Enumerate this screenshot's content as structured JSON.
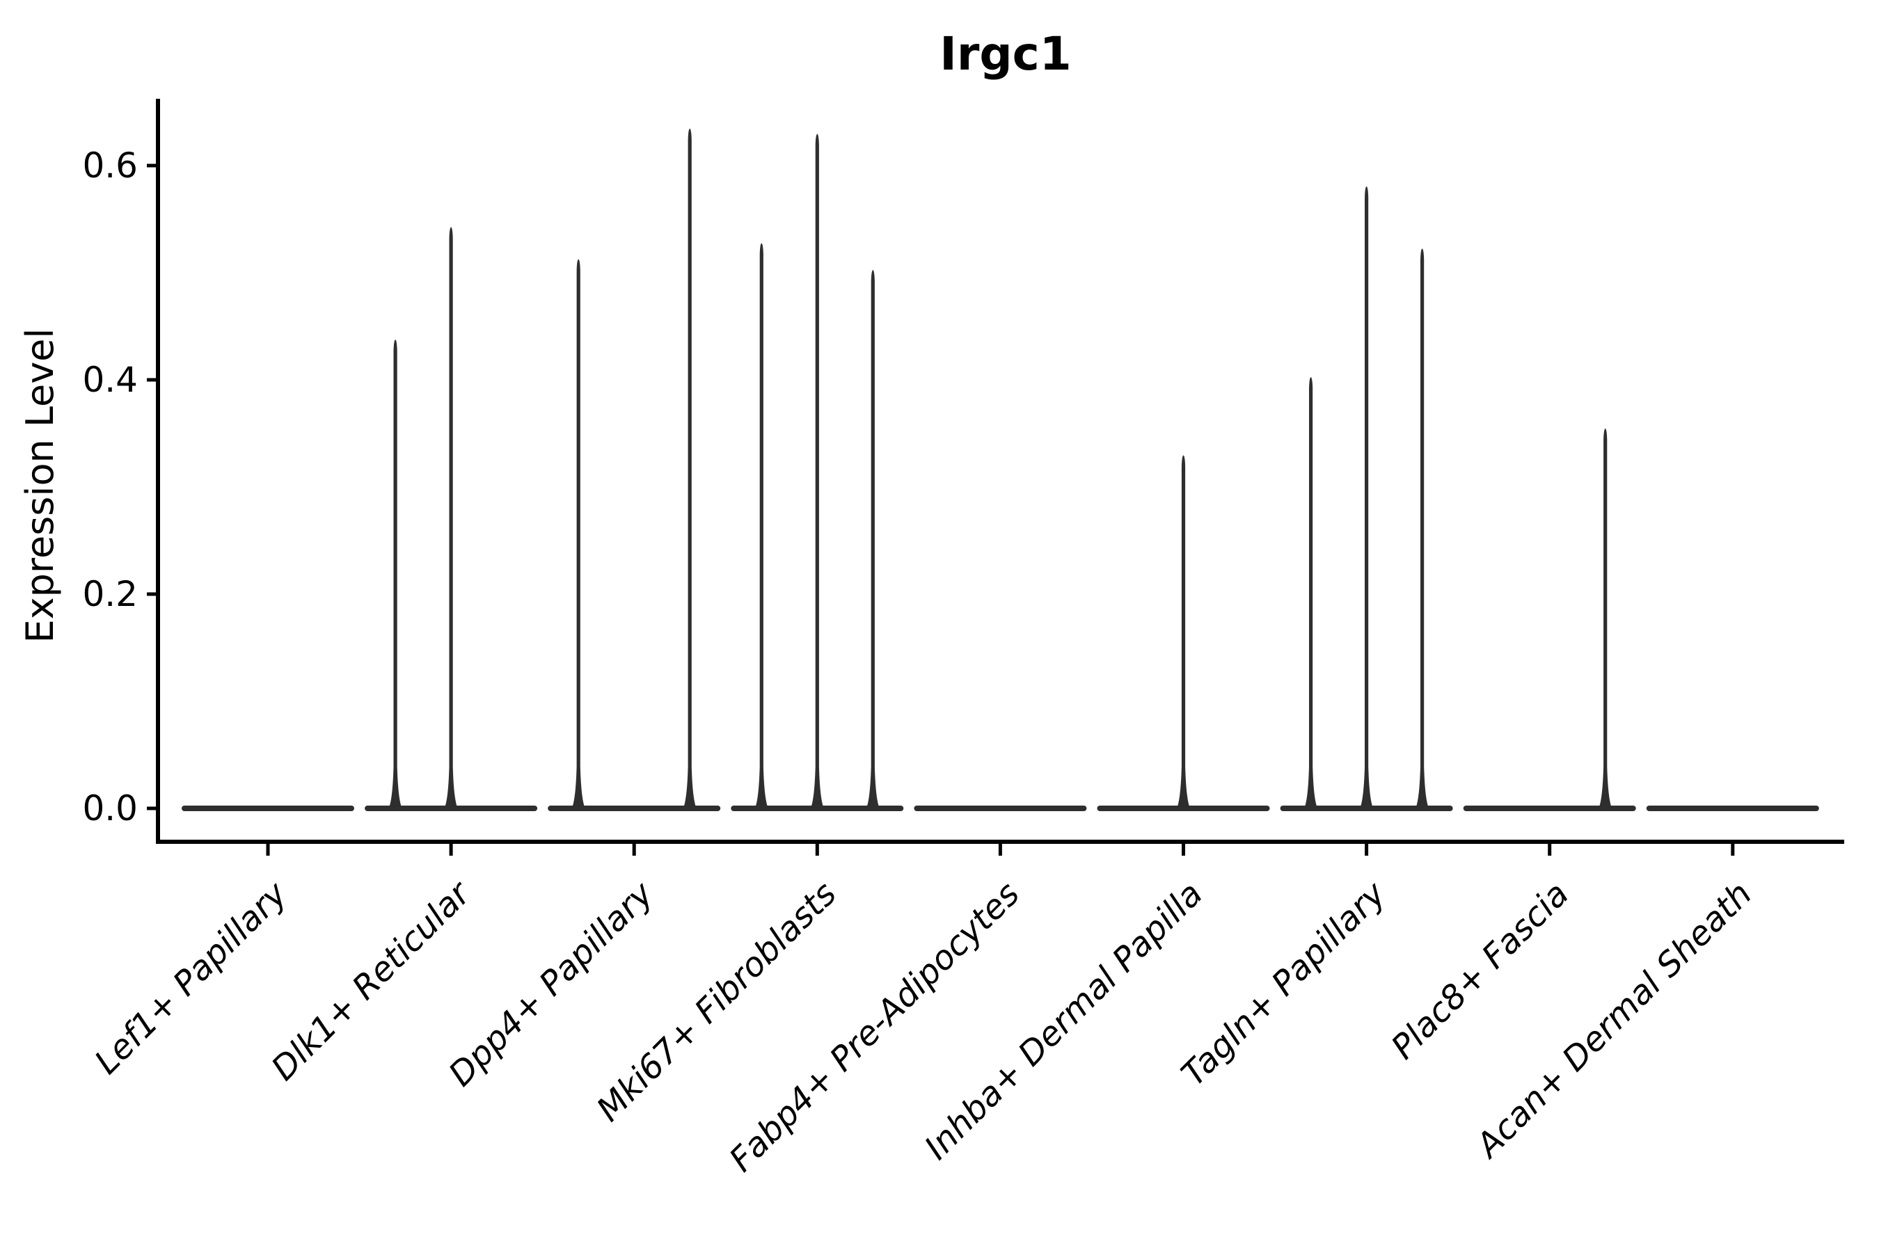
{
  "figure": {
    "title": "Irgc1",
    "y_axis": {
      "label": "Expression Level",
      "tick_labels": [
        "0.0",
        "0.2",
        "0.4",
        "0.6"
      ],
      "tick_values": [
        0.0,
        0.2,
        0.4,
        0.6
      ]
    },
    "x_axis": {
      "categories": [
        "Lef1+ Papillary",
        "Dlk1+ Reticular",
        "Dpp4+ Papillary",
        "Mki67+ Fibroblasts",
        "Fabp4+ Pre-Adipocytes",
        "Inhba+ Dermal Papilla",
        "Tagln+ Papillary",
        "Plac8+ Fascia",
        "Acan+ Dermal Sheath"
      ]
    }
  },
  "colors": {
    "violin": "#2e2e2e",
    "axis": "#000000",
    "text": "#000000",
    "background": "#ffffff"
  },
  "chart_data": {
    "type": "violin",
    "title": "Irgc1",
    "xlabel": "",
    "ylabel": "Expression Level",
    "categories": [
      "Lef1+ Papillary",
      "Dlk1+ Reticular",
      "Dpp4+ Papillary",
      "Mki67+ Fibroblasts",
      "Fabp4+ Pre-Adipocytes",
      "Inhba+ Dermal Papilla",
      "Tagln+ Papillary",
      "Plac8+ Fascia",
      "Acan+ Dermal Sheath"
    ],
    "yticks": [
      0.0,
      0.2,
      0.4,
      0.6
    ],
    "ylim": [
      -0.031,
      0.664
    ],
    "grid": false,
    "legend": "none",
    "baseline_value": 0.0,
    "groups_per_category": 3,
    "series": [
      {
        "category": "Lef1+ Papillary",
        "spikes": []
      },
      {
        "category": "Dlk1+ Reticular",
        "spikes": [
          {
            "slot": 0,
            "peak": 0.435
          },
          {
            "slot": 1,
            "peak": 0.54
          }
        ]
      },
      {
        "category": "Dpp4+ Papillary",
        "spikes": [
          {
            "slot": 0,
            "peak": 0.51
          },
          {
            "slot": 2,
            "peak": 0.632
          }
        ]
      },
      {
        "category": "Mki67+ Fibroblasts",
        "spikes": [
          {
            "slot": 0,
            "peak": 0.525
          },
          {
            "slot": 1,
            "peak": 0.627
          },
          {
            "slot": 2,
            "peak": 0.5
          }
        ]
      },
      {
        "category": "Fabp4+ Pre-Adipocytes",
        "spikes": []
      },
      {
        "category": "Inhba+ Dermal Papilla",
        "spikes": [
          {
            "slot": 1,
            "peak": 0.327
          }
        ]
      },
      {
        "category": "Tagln+ Papillary",
        "spikes": [
          {
            "slot": 0,
            "peak": 0.4
          },
          {
            "slot": 1,
            "peak": 0.578
          },
          {
            "slot": 2,
            "peak": 0.52
          }
        ]
      },
      {
        "category": "Plac8+ Fascia",
        "spikes": [
          {
            "slot": 2,
            "peak": 0.352
          }
        ]
      },
      {
        "category": "Acan+ Dermal Sheath",
        "spikes": []
      }
    ]
  }
}
